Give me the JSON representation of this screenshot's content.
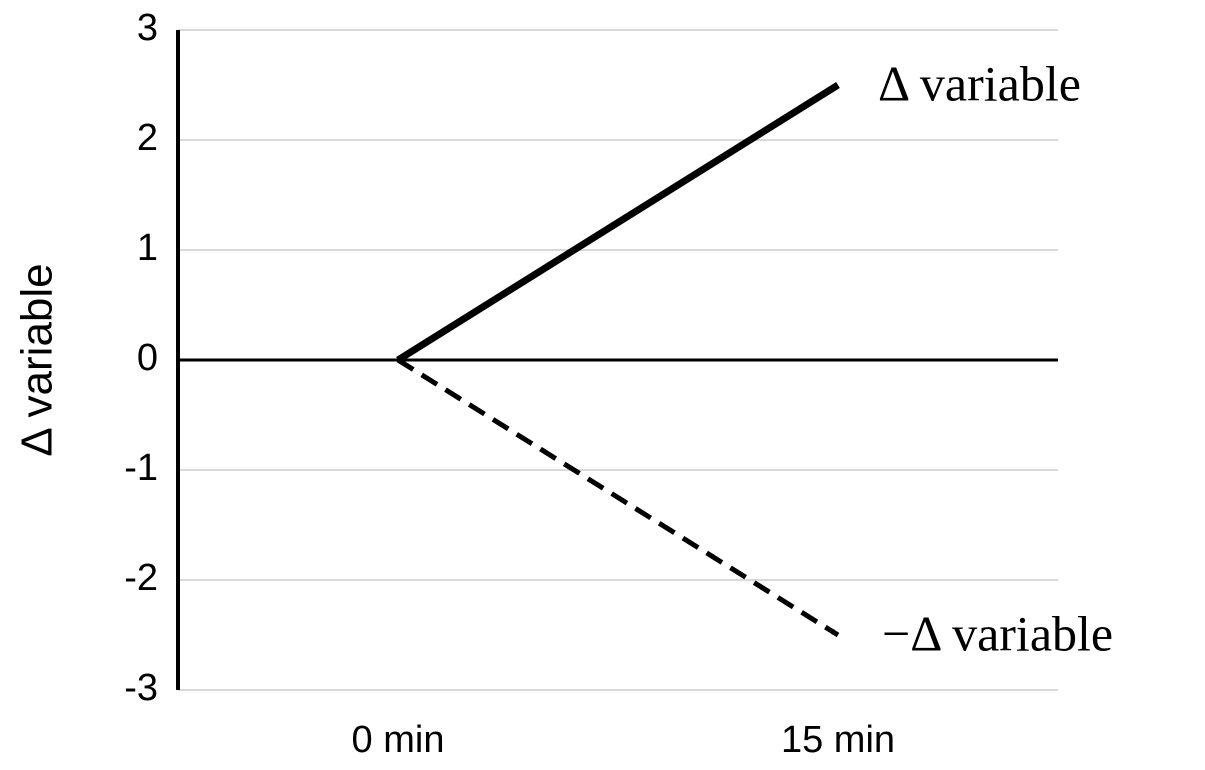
{
  "chart_data": {
    "type": "line",
    "y_label": "Δ variable",
    "categories": [
      "0 min",
      "15 min"
    ],
    "series": [
      {
        "name": "Δ variable",
        "color": "#000000",
        "values": [
          0,
          2.5
        ],
        "dashed": false
      },
      {
        "name": "−Δ variable",
        "color": "#000000",
        "values": [
          0,
          -2.5
        ],
        "dashed": true
      }
    ],
    "ylim": [
      -3,
      3
    ],
    "yticks": [
      -3,
      -2,
      -1,
      0,
      1,
      2,
      3
    ],
    "grid": true
  }
}
